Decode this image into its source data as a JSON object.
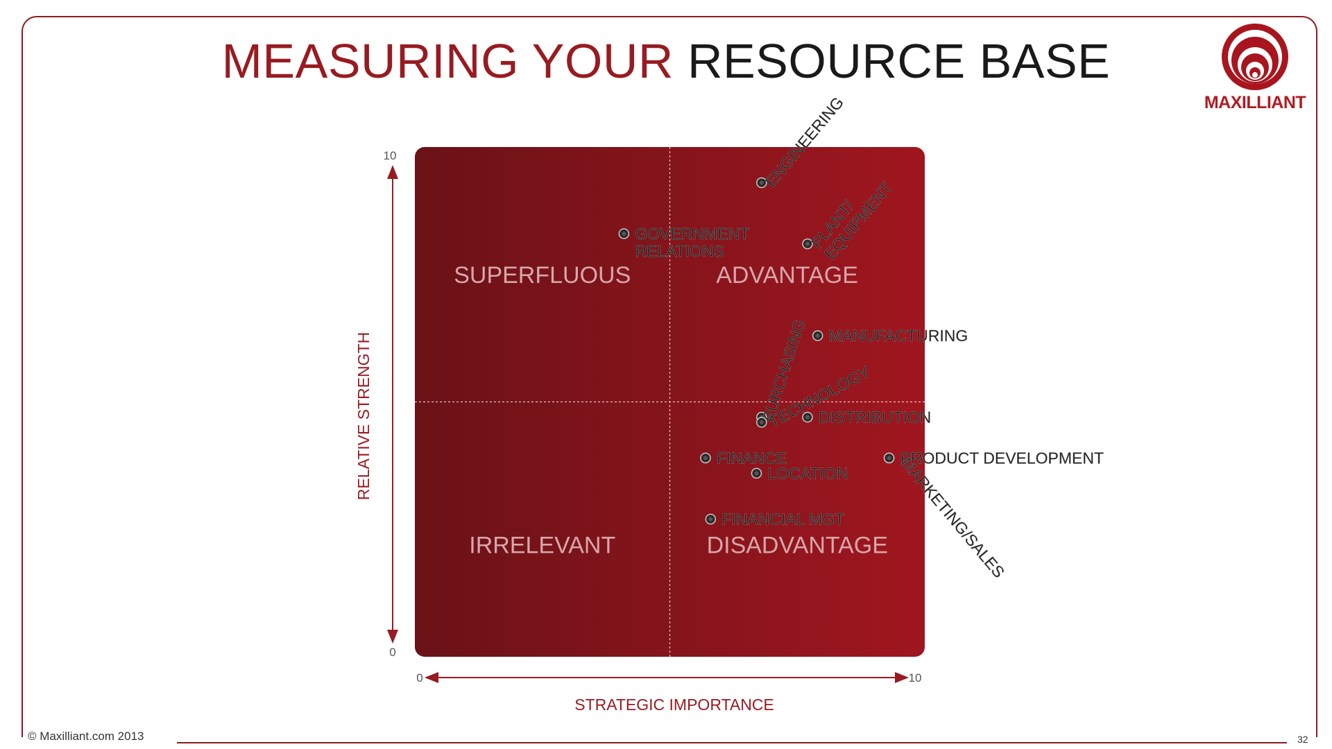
{
  "title": {
    "part1": "MEASURING YOUR",
    "part2": "RESOURCE BASE"
  },
  "logo": {
    "name": "MAXILLIANT"
  },
  "footer": {
    "copyright": "© Maxilliant.com 2013",
    "page_number": "32"
  },
  "colors": {
    "accent": "#981b21",
    "quad_dark": "#6a1217",
    "quad_light": "#a0161f",
    "quad_label": "#d8a6aa"
  },
  "chart_data": {
    "type": "scatter",
    "title": "",
    "xlabel": "STRATEGIC IMPORTANCE",
    "ylabel": "RELATIVE STRENGTH",
    "xlim": [
      0,
      10
    ],
    "ylim": [
      0,
      10
    ],
    "x_ticks": [
      "0",
      "10"
    ],
    "y_ticks": [
      "0",
      "10"
    ],
    "grid": false,
    "dividers": {
      "x": 5,
      "y": 5
    },
    "quadrants": [
      {
        "label": "SUPERFLUOUS",
        "position": "top-left"
      },
      {
        "label": "ADVANTAGE",
        "position": "top-right"
      },
      {
        "label": "IRRELEVANT",
        "position": "bottom-left"
      },
      {
        "label": "DISADVANTAGE",
        "position": "bottom-right"
      }
    ],
    "points": [
      {
        "label": "ENGINEERING",
        "lines": [
          "ENGINEERING"
        ],
        "x": 6.8,
        "y": 9.3,
        "rotation": -50
      },
      {
        "label": "GOVERNMENT RELATIONS",
        "lines": [
          "GOVERNMENT",
          "RELATIONS"
        ],
        "x": 4.1,
        "y": 8.3,
        "rotation": 0
      },
      {
        "label": "PLANT/ EQUIPMENT",
        "lines": [
          "PLANT/",
          "EQUIPMENT"
        ],
        "x": 7.7,
        "y": 8.1,
        "rotation": -50
      },
      {
        "label": "MANUFACTURING",
        "lines": [
          "MANUFACTURING"
        ],
        "x": 7.9,
        "y": 6.3,
        "rotation": 0
      },
      {
        "label": "PURCHASING",
        "lines": [
          "PURCHASING"
        ],
        "x": 6.8,
        "y": 4.7,
        "rotation": -72
      },
      {
        "label": "TECHNOLOGY",
        "lines": [
          "TECHNOLOGY"
        ],
        "x": 6.8,
        "y": 4.6,
        "rotation": -28
      },
      {
        "label": "DISTRIBUTION",
        "lines": [
          "DISTRIBUTION"
        ],
        "x": 7.7,
        "y": 4.7,
        "rotation": 0
      },
      {
        "label": "FINANCE",
        "lines": [
          "FINANCE"
        ],
        "x": 5.7,
        "y": 3.9,
        "rotation": 0
      },
      {
        "label": "PRODUCT DEVELOPMENT",
        "lines": [
          "PRODUCT DEVELOPMENT"
        ],
        "x": 9.3,
        "y": 3.9,
        "rotation": 0
      },
      {
        "label": "MARKETING/SALES",
        "lines": [
          "MARKETING/SALES"
        ],
        "x": 9.3,
        "y": 3.9,
        "rotation": 50
      },
      {
        "label": "LOCATION",
        "lines": [
          "LOCATION"
        ],
        "x": 6.7,
        "y": 3.6,
        "rotation": 0
      },
      {
        "label": "FINANCIAL MGT",
        "lines": [
          "FINANCIAL MGT"
        ],
        "x": 5.8,
        "y": 2.7,
        "rotation": 0
      }
    ]
  }
}
